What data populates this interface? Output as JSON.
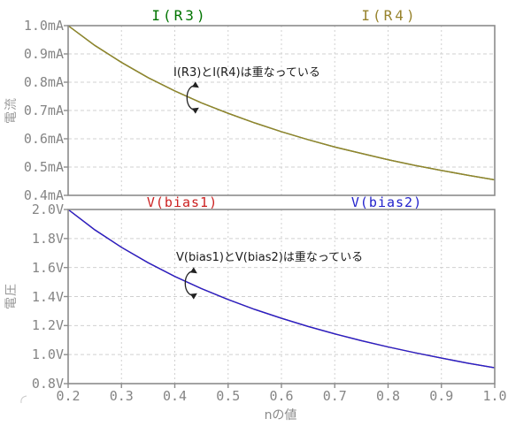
{
  "colors": {
    "frame": "#8c8c8c",
    "grid": "#d0d0d0",
    "axis_text": "#858585",
    "annotation_text": "#1a1a1a",
    "arrow": "#222222",
    "trace_ir3": "#007400",
    "trace_ir4": "#97832d",
    "trace_vbias1": "#cc2222",
    "trace_vbias2": "#2222cc"
  },
  "xaxis": {
    "label": "nの値",
    "tick_labels": [
      "0.2",
      "0.3",
      "0.4",
      "0.5",
      "0.6",
      "0.7",
      "0.8",
      "0.9",
      "1.0"
    ]
  },
  "chart_data": [
    {
      "type": "line",
      "title": "",
      "ylabel": "電流",
      "xlabel": "nの値",
      "xlim": [
        0.2,
        1.0
      ],
      "ylim": [
        0.4,
        1.0
      ],
      "grid": true,
      "legend_position": "top",
      "ytick_labels": [
        "1.0mA",
        "0.9mA",
        "0.8mA",
        "0.7mA",
        "0.6mA",
        "0.5mA",
        "0.4mA"
      ],
      "annotation": "I(R3)とI(R4)は重なっている",
      "x": [
        0.2,
        0.25,
        0.3,
        0.35,
        0.4,
        0.45,
        0.5,
        0.55,
        0.6,
        0.65,
        0.7,
        0.75,
        0.8,
        0.85,
        0.9,
        0.95,
        1.0
      ],
      "series": [
        {
          "name": "I(R3)",
          "unit": "mA",
          "color": "#007400",
          "values": [
            1.0,
            0.93,
            0.87,
            0.816,
            0.769,
            0.727,
            0.69,
            0.656,
            0.625,
            0.597,
            0.571,
            0.548,
            0.526,
            0.506,
            0.488,
            0.471,
            0.455
          ]
        },
        {
          "name": "I(R4)",
          "unit": "mA",
          "color": "#97832d",
          "values": [
            1.0,
            0.93,
            0.87,
            0.816,
            0.769,
            0.727,
            0.69,
            0.656,
            0.625,
            0.597,
            0.571,
            0.548,
            0.526,
            0.506,
            0.488,
            0.471,
            0.455
          ]
        }
      ]
    },
    {
      "type": "line",
      "title": "",
      "ylabel": "電圧",
      "xlabel": "nの値",
      "xlim": [
        0.2,
        1.0
      ],
      "ylim": [
        0.8,
        2.0
      ],
      "grid": true,
      "legend_position": "top",
      "ytick_labels": [
        "2.0V",
        "1.8V",
        "1.6V",
        "1.4V",
        "1.2V",
        "1.0V",
        "0.8V"
      ],
      "annotation": "V(bias1)とV(bias2)は重なっている",
      "x": [
        0.2,
        0.25,
        0.3,
        0.35,
        0.4,
        0.45,
        0.5,
        0.55,
        0.6,
        0.65,
        0.7,
        0.75,
        0.8,
        0.85,
        0.9,
        0.95,
        1.0
      ],
      "series": [
        {
          "name": "V(bias1)",
          "unit": "V",
          "color": "#cc2222",
          "values": [
            2.0,
            1.86,
            1.739,
            1.633,
            1.538,
            1.455,
            1.379,
            1.311,
            1.25,
            1.194,
            1.143,
            1.096,
            1.053,
            1.013,
            0.976,
            0.941,
            0.909
          ]
        },
        {
          "name": "V(bias2)",
          "unit": "V",
          "color": "#2222cc",
          "values": [
            2.0,
            1.86,
            1.739,
            1.633,
            1.538,
            1.455,
            1.379,
            1.311,
            1.25,
            1.194,
            1.143,
            1.096,
            1.053,
            1.013,
            0.976,
            0.941,
            0.909
          ]
        }
      ]
    }
  ]
}
